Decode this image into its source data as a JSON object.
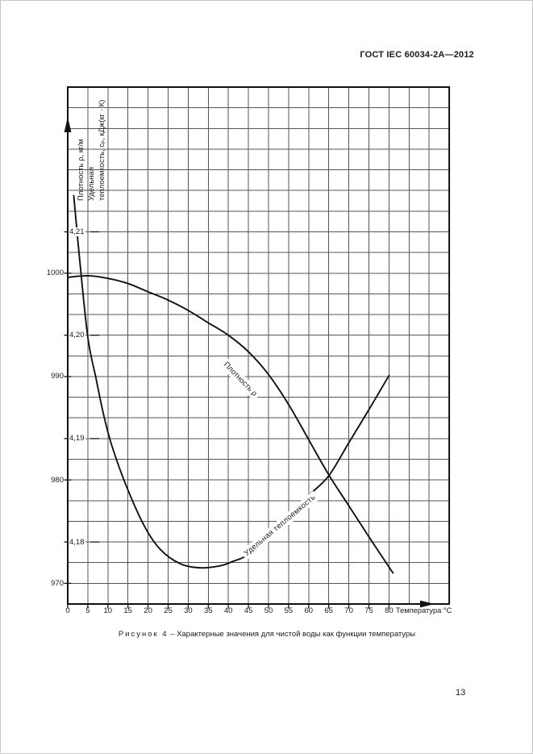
{
  "page": {
    "header": "ГОСТ IEC 60034-2А—2012",
    "page_number": "13"
  },
  "chart_data": {
    "type": "line",
    "title_prefix": "Рисунок 4",
    "title_dash": "–",
    "title": "Характерные значения для чистой воды как функции температуры",
    "x_axis": {
      "label": "Температура °C",
      "ticks": [
        0,
        5,
        10,
        15,
        20,
        25,
        30,
        35,
        40,
        45,
        50,
        55,
        60,
        65,
        70,
        75,
        80
      ],
      "range": [
        0,
        95
      ]
    },
    "y_axis_title_lines": [
      "Плотность ρ, кг/м",
      "Удельная",
      "теплоемкость, сₚ, кДж(кг · К)"
    ],
    "y_density": {
      "ticks": [
        {
          "label": "1000",
          "value": 1000
        },
        {
          "label": "990",
          "value": 990
        },
        {
          "label": "980",
          "value": 980
        },
        {
          "label": "970",
          "value": 970
        }
      ],
      "range": [
        968,
        1018
      ]
    },
    "y_cp": {
      "ticks": [
        {
          "label": "4,21",
          "value": 4.21
        },
        {
          "label": "4,20",
          "value": 4.2
        },
        {
          "label": "4,19",
          "value": 4.19
        },
        {
          "label": "4,18",
          "value": 4.18
        }
      ],
      "range": [
        4.174,
        4.224
      ]
    },
    "grid": {
      "columns": 19,
      "rows": 25
    },
    "series": [
      {
        "name": "Плотность ρ",
        "axis": "density",
        "points": [
          [
            0,
            999.6
          ],
          [
            5,
            999.75
          ],
          [
            10,
            999.5
          ],
          [
            15,
            999.0
          ],
          [
            20,
            998.2
          ],
          [
            25,
            997.4
          ],
          [
            30,
            996.4
          ],
          [
            35,
            995.2
          ],
          [
            40,
            994.0
          ],
          [
            45,
            992.4
          ],
          [
            50,
            990.2
          ],
          [
            55,
            987.3
          ],
          [
            60,
            983.9
          ],
          [
            65,
            980.5
          ],
          [
            70,
            977.5
          ],
          [
            75,
            974.5
          ],
          [
            81,
            971.0
          ]
        ]
      },
      {
        "name": "Удельная теплоемкость",
        "axis": "cp",
        "points": [
          [
            1.5,
            4.2135
          ],
          [
            3,
            4.2072
          ],
          [
            5,
            4.1998
          ],
          [
            7,
            4.1959
          ],
          [
            9,
            4.1922
          ],
          [
            11,
            4.1893
          ],
          [
            14.5,
            4.1855
          ],
          [
            19,
            4.1816
          ],
          [
            23,
            4.1793
          ],
          [
            28,
            4.1779
          ],
          [
            33,
            4.1775
          ],
          [
            38,
            4.1777
          ],
          [
            41,
            4.1781
          ],
          [
            45,
            4.1788
          ],
          [
            50,
            4.1807
          ],
          [
            55,
            4.1826
          ],
          [
            60,
            4.1845
          ],
          [
            65,
            4.1864
          ],
          [
            70,
            4.1896
          ],
          [
            75,
            4.1928
          ],
          [
            80,
            4.1961
          ]
        ]
      }
    ]
  }
}
